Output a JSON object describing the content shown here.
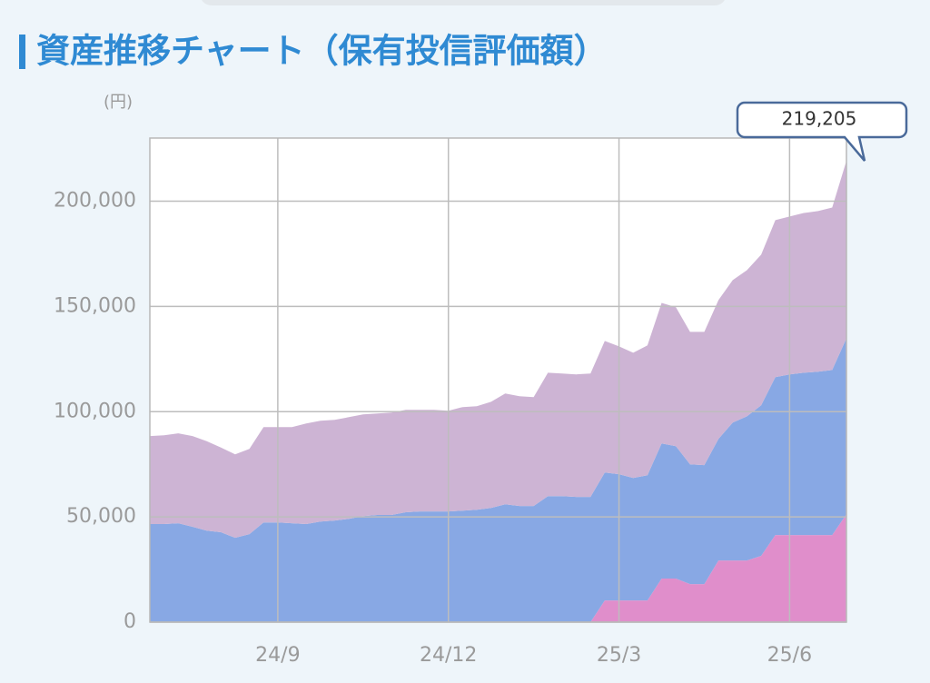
{
  "chart_data": {
    "type": "stacked_area",
    "title": "資産推移チャート（保有投信評価額）",
    "y_unit": "(円)",
    "categories": [
      null,
      null,
      null,
      null,
      null,
      null,
      null,
      null,
      null,
      "24/9",
      null,
      null,
      null,
      null,
      null,
      null,
      null,
      null,
      null,
      null,
      null,
      "24/12",
      null,
      null,
      null,
      null,
      null,
      null,
      null,
      null,
      null,
      null,
      null,
      "25/3",
      null,
      null,
      null,
      null,
      null,
      null,
      null,
      null,
      null,
      null,
      null,
      "25/6",
      null,
      null,
      null,
      null
    ],
    "series": [
      {
        "color": "#e08ecb",
        "values": [
          0,
          0,
          0,
          0,
          0,
          0,
          0,
          0,
          0,
          0,
          0,
          0,
          0,
          0,
          0,
          0,
          0,
          0,
          0,
          0,
          0,
          0,
          0,
          0,
          0,
          0,
          0,
          0,
          0,
          0,
          0,
          0,
          10300,
          10300,
          10300,
          10300,
          20700,
          20700,
          18100,
          18100,
          29300,
          29300,
          29300,
          31500,
          41400,
          41400,
          41400,
          41400,
          41400,
          51300
        ]
      },
      {
        "color": "#88a8e4",
        "values": [
          46600,
          46600,
          47000,
          45300,
          43500,
          42700,
          40100,
          41800,
          47400,
          47400,
          47000,
          46600,
          47800,
          48300,
          49100,
          50400,
          50900,
          50900,
          52200,
          52600,
          52600,
          52600,
          53000,
          53400,
          54300,
          56000,
          55200,
          55200,
          59900,
          59900,
          59500,
          59500,
          60800,
          60000,
          58200,
          59500,
          64200,
          62900,
          56900,
          56500,
          57800,
          65500,
          68500,
          71500,
          75000,
          76300,
          77100,
          77600,
          78400,
          83600
        ]
      },
      {
        "color": "#cdb4d4",
        "values": [
          41800,
          42200,
          42700,
          43100,
          42500,
          40300,
          39600,
          40500,
          45300,
          45300,
          45700,
          47800,
          47900,
          47800,
          48300,
          48300,
          48200,
          48700,
          48700,
          48300,
          48300,
          47800,
          49200,
          49200,
          50400,
          52600,
          52100,
          51700,
          58600,
          58200,
          58200,
          58600,
          62500,
          60700,
          59500,
          61700,
          66800,
          66000,
          62900,
          63300,
          65900,
          67700,
          69400,
          71600,
          74600,
          75000,
          75900,
          76300,
          77200,
          84305
        ]
      }
    ],
    "callout": {
      "value": 219205,
      "label": "219,205"
    },
    "ylim": [
      0,
      230000
    ],
    "yticks": [
      0,
      {
        "value": 50000,
        "label": "50,000"
      },
      {
        "value": 100000,
        "label": "100,000"
      },
      {
        "value": 150000,
        "label": "150,000"
      },
      {
        "value": 200000,
        "label": "200,000"
      }
    ],
    "grid": true
  }
}
